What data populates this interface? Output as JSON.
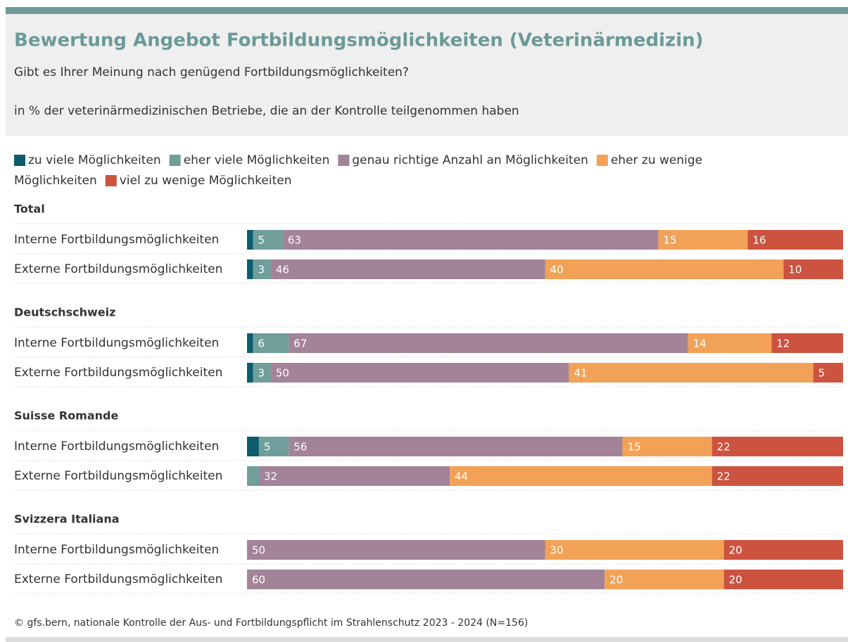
{
  "chart_data": {
    "type": "bar",
    "orientation": "horizontal",
    "stacked": true,
    "title": "Bewertung Angebot Fortbildungsmöglichkeiten (Veterinärmedizin)",
    "subtitle": "Gibt es Ihrer Meinung nach genügend Fortbildungsmöglichkeiten?",
    "note": "in % der veterinärmedizinischen Betriebe, die an der Kontrolle teilgenommen haben",
    "source": "© gfs.bern, nationale Kontrolle der Aus- und Fortbildungspflicht im Strahlenschutz 2023 - 2024 (N=156)",
    "xlim": [
      0,
      100
    ],
    "series": [
      {
        "name": "zu viele Möglichkeiten",
        "color": "#0d5c6e"
      },
      {
        "name": "eher viele Möglichkeiten",
        "color": "#6f9e9b"
      },
      {
        "name": "genau richtige Anzahl an Möglichkeiten",
        "color": "#a28397"
      },
      {
        "name": "eher zu wenige Möglichkeiten",
        "color": "#f2a257"
      },
      {
        "name": "viel zu wenige Möglichkeiten",
        "color": "#cc5340"
      }
    ],
    "groups": [
      {
        "name": "Total",
        "categories": [
          "Interne Fortbildungsmöglichkeiten",
          "Externe Fortbildungsmöglichkeiten"
        ],
        "values": [
          [
            1,
            5,
            63,
            15,
            16
          ],
          [
            1,
            3,
            46,
            40,
            10
          ]
        ]
      },
      {
        "name": "Deutschschweiz",
        "categories": [
          "Interne Fortbildungsmöglichkeiten",
          "Externe Fortbildungsmöglichkeiten"
        ],
        "values": [
          [
            1,
            6,
            67,
            14,
            12
          ],
          [
            1,
            3,
            50,
            41,
            5
          ]
        ]
      },
      {
        "name": "Suisse Romande",
        "categories": [
          "Interne Fortbildungsmöglichkeiten",
          "Externe Fortbildungsmöglichkeiten"
        ],
        "values": [
          [
            2,
            5,
            56,
            15,
            22
          ],
          [
            0,
            2,
            32,
            44,
            22
          ]
        ]
      },
      {
        "name": "Svizzera Italiana",
        "categories": [
          "Interne Fortbildungsmöglichkeiten",
          "Externe Fortbildungsmöglichkeiten"
        ],
        "values": [
          [
            0,
            0,
            50,
            30,
            20
          ],
          [
            0,
            0,
            60,
            20,
            20
          ]
        ]
      }
    ]
  }
}
